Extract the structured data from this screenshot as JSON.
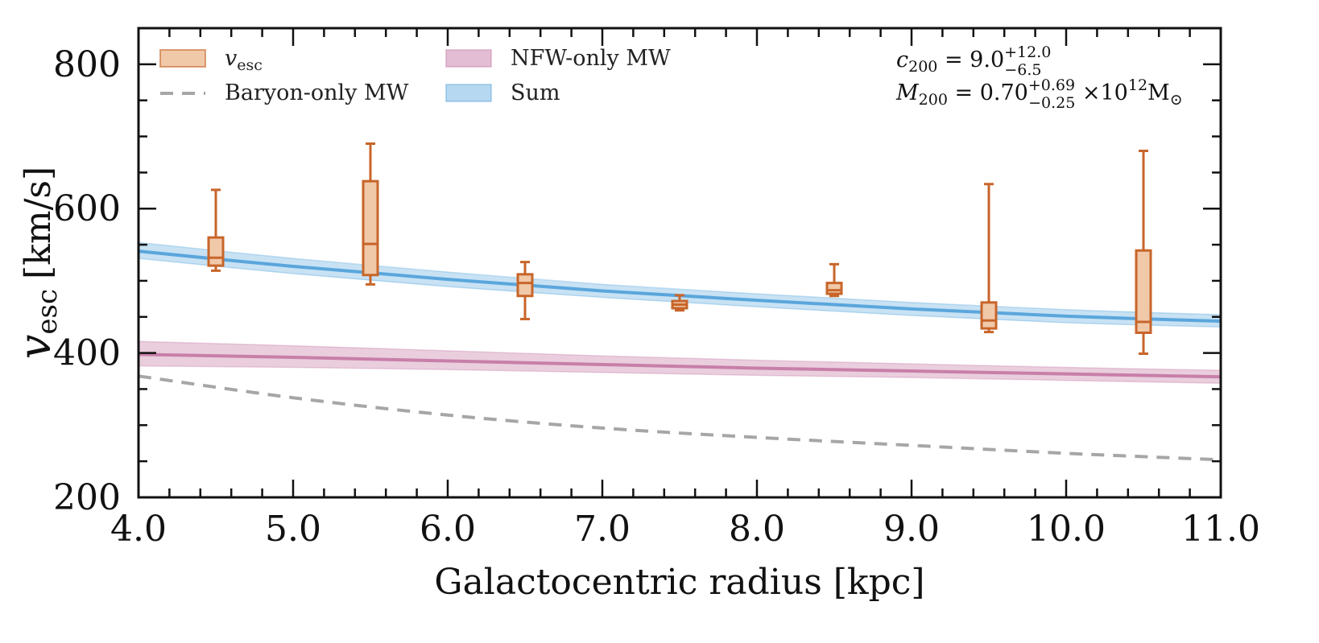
{
  "chart_data": {
    "type": "line",
    "xlabel": "Galactocentric radius [kpc]",
    "ylabel_main": "v",
    "ylabel_sub": "esc",
    "ylabel_unit": "[km/s]",
    "xlim": [
      4.0,
      11.0
    ],
    "ylim": [
      200,
      850
    ],
    "xticks": [
      4.0,
      5.0,
      6.0,
      7.0,
      8.0,
      9.0,
      10.0,
      11.0
    ],
    "xtick_labels": [
      "4.0",
      "5.0",
      "6.0",
      "7.0",
      "8.0",
      "9.0",
      "10.0",
      "11.0"
    ],
    "yticks": [
      200,
      400,
      600,
      800
    ],
    "ytick_labels": [
      "200",
      "400",
      "600",
      "800"
    ],
    "grid": false,
    "legend_placement": "top-left",
    "legend": [
      {
        "key": "vesc",
        "label_main": "v",
        "label_sub": "esc"
      },
      {
        "key": "baryon",
        "label": "Baryon-only MW"
      },
      {
        "key": "nfw",
        "label": "NFW-only MW"
      },
      {
        "key": "sum",
        "label": "Sum"
      }
    ],
    "annotations": {
      "c200": {
        "sym": "c",
        "sub": "200",
        "eq": " = 9.0",
        "sup": "+12.0",
        "low": "−6.5"
      },
      "m200": {
        "sym": "M",
        "sub": "200",
        "eq": " = 0.70",
        "sup": "+0.69",
        "low": "−0.25",
        "times": " ×10",
        "exp": "12",
        "unit": "M",
        "unit_sub": "⊙"
      }
    },
    "colors": {
      "vesc": "#c8652a",
      "vesc_fill": "#f0c9a9",
      "baryon": "#a6a6a6",
      "nfw": "#c77fa8",
      "nfw_fill": "#e3bdd3",
      "sum": "#5aa6dc",
      "sum_fill": "#b6d8f0"
    },
    "series": [
      {
        "key": "sum",
        "x": [
          4.0,
          5.0,
          6.0,
          7.0,
          8.0,
          9.0,
          10.0,
          11.0
        ],
        "y": [
          541,
          520,
          502,
          486,
          473,
          461,
          451,
          444
        ],
        "y_low": [
          531,
          510,
          492,
          477,
          464,
          452,
          442,
          436
        ],
        "y_high": [
          553,
          531,
          512,
          495,
          482,
          470,
          460,
          453
        ]
      },
      {
        "key": "nfw",
        "x": [
          4.0,
          5.0,
          6.0,
          7.0,
          8.0,
          9.0,
          10.0,
          11.0
        ],
        "y": [
          398,
          394,
          389,
          384,
          379,
          375,
          371,
          367
        ],
        "y_low": [
          382,
          380,
          377,
          373,
          369,
          366,
          362,
          358
        ],
        "y_high": [
          416,
          410,
          403,
          396,
          390,
          385,
          380,
          376
        ]
      },
      {
        "key": "baryon",
        "x": [
          4.0,
          5.0,
          6.0,
          7.0,
          8.0,
          9.0,
          10.0,
          11.0
        ],
        "y": [
          368,
          338,
          314,
          296,
          283,
          272,
          261,
          252
        ]
      }
    ],
    "boxes": [
      {
        "x": 4.5,
        "whislo": 514,
        "q1": 521,
        "med": 532,
        "q3": 560,
        "whishi": 626
      },
      {
        "x": 5.5,
        "whislo": 495,
        "q1": 508,
        "med": 551,
        "q3": 638,
        "whishi": 690
      },
      {
        "x": 6.5,
        "whislo": 447,
        "q1": 479,
        "med": 497,
        "q3": 509,
        "whishi": 526
      },
      {
        "x": 7.5,
        "whislo": 459,
        "q1": 462,
        "med": 467,
        "q3": 472,
        "whishi": 480
      },
      {
        "x": 8.5,
        "whislo": 479,
        "q1": 482,
        "med": 487,
        "q3": 497,
        "whishi": 523
      },
      {
        "x": 9.5,
        "whislo": 429,
        "q1": 434,
        "med": 445,
        "q3": 470,
        "whishi": 634
      },
      {
        "x": 10.5,
        "whislo": 399,
        "q1": 428,
        "med": 443,
        "q3": 542,
        "whishi": 680
      }
    ]
  }
}
